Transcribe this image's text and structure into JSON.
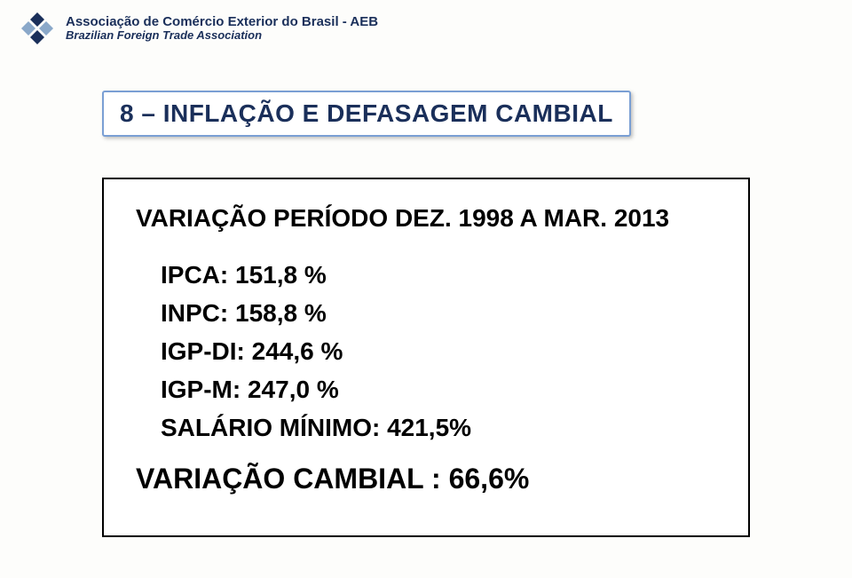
{
  "header": {
    "org_line1": "Associação de Comércio Exterior do Brasil - AEB",
    "org_line2": "Brazilian Foreign Trade Association",
    "logo": {
      "colors": {
        "dark_blue": "#1a2f5a",
        "light_blue": "#8aa8c9"
      }
    }
  },
  "title": {
    "text": "8 – INFLAÇÃO E DEFASAGEM CAMBIAL",
    "text_color": "#1a2f5a",
    "border_color": "#7a9fd4",
    "fontsize": 28
  },
  "content": {
    "subtitle": "VARIAÇÃO PERÍODO DEZ. 1998  A  MAR. 2013",
    "rows": [
      {
        "label": "IPCA",
        "value": "151,8 %"
      },
      {
        "label": "INPC",
        "value": "158,8 %"
      },
      {
        "label": "IGP-DI",
        "value": "244,6 %"
      },
      {
        "label": "IGP-M",
        "value": "247,0 %"
      },
      {
        "label": "SALÁRIO MÍNIMO",
        "value": "421,5%"
      }
    ],
    "footer": "VARIAÇÃO CAMBIAL : 66,6%",
    "border_color": "#000000",
    "text_color": "#000000",
    "fontsize_rows": 28,
    "fontsize_footer": 32
  },
  "background_color": "#fdfdfb"
}
